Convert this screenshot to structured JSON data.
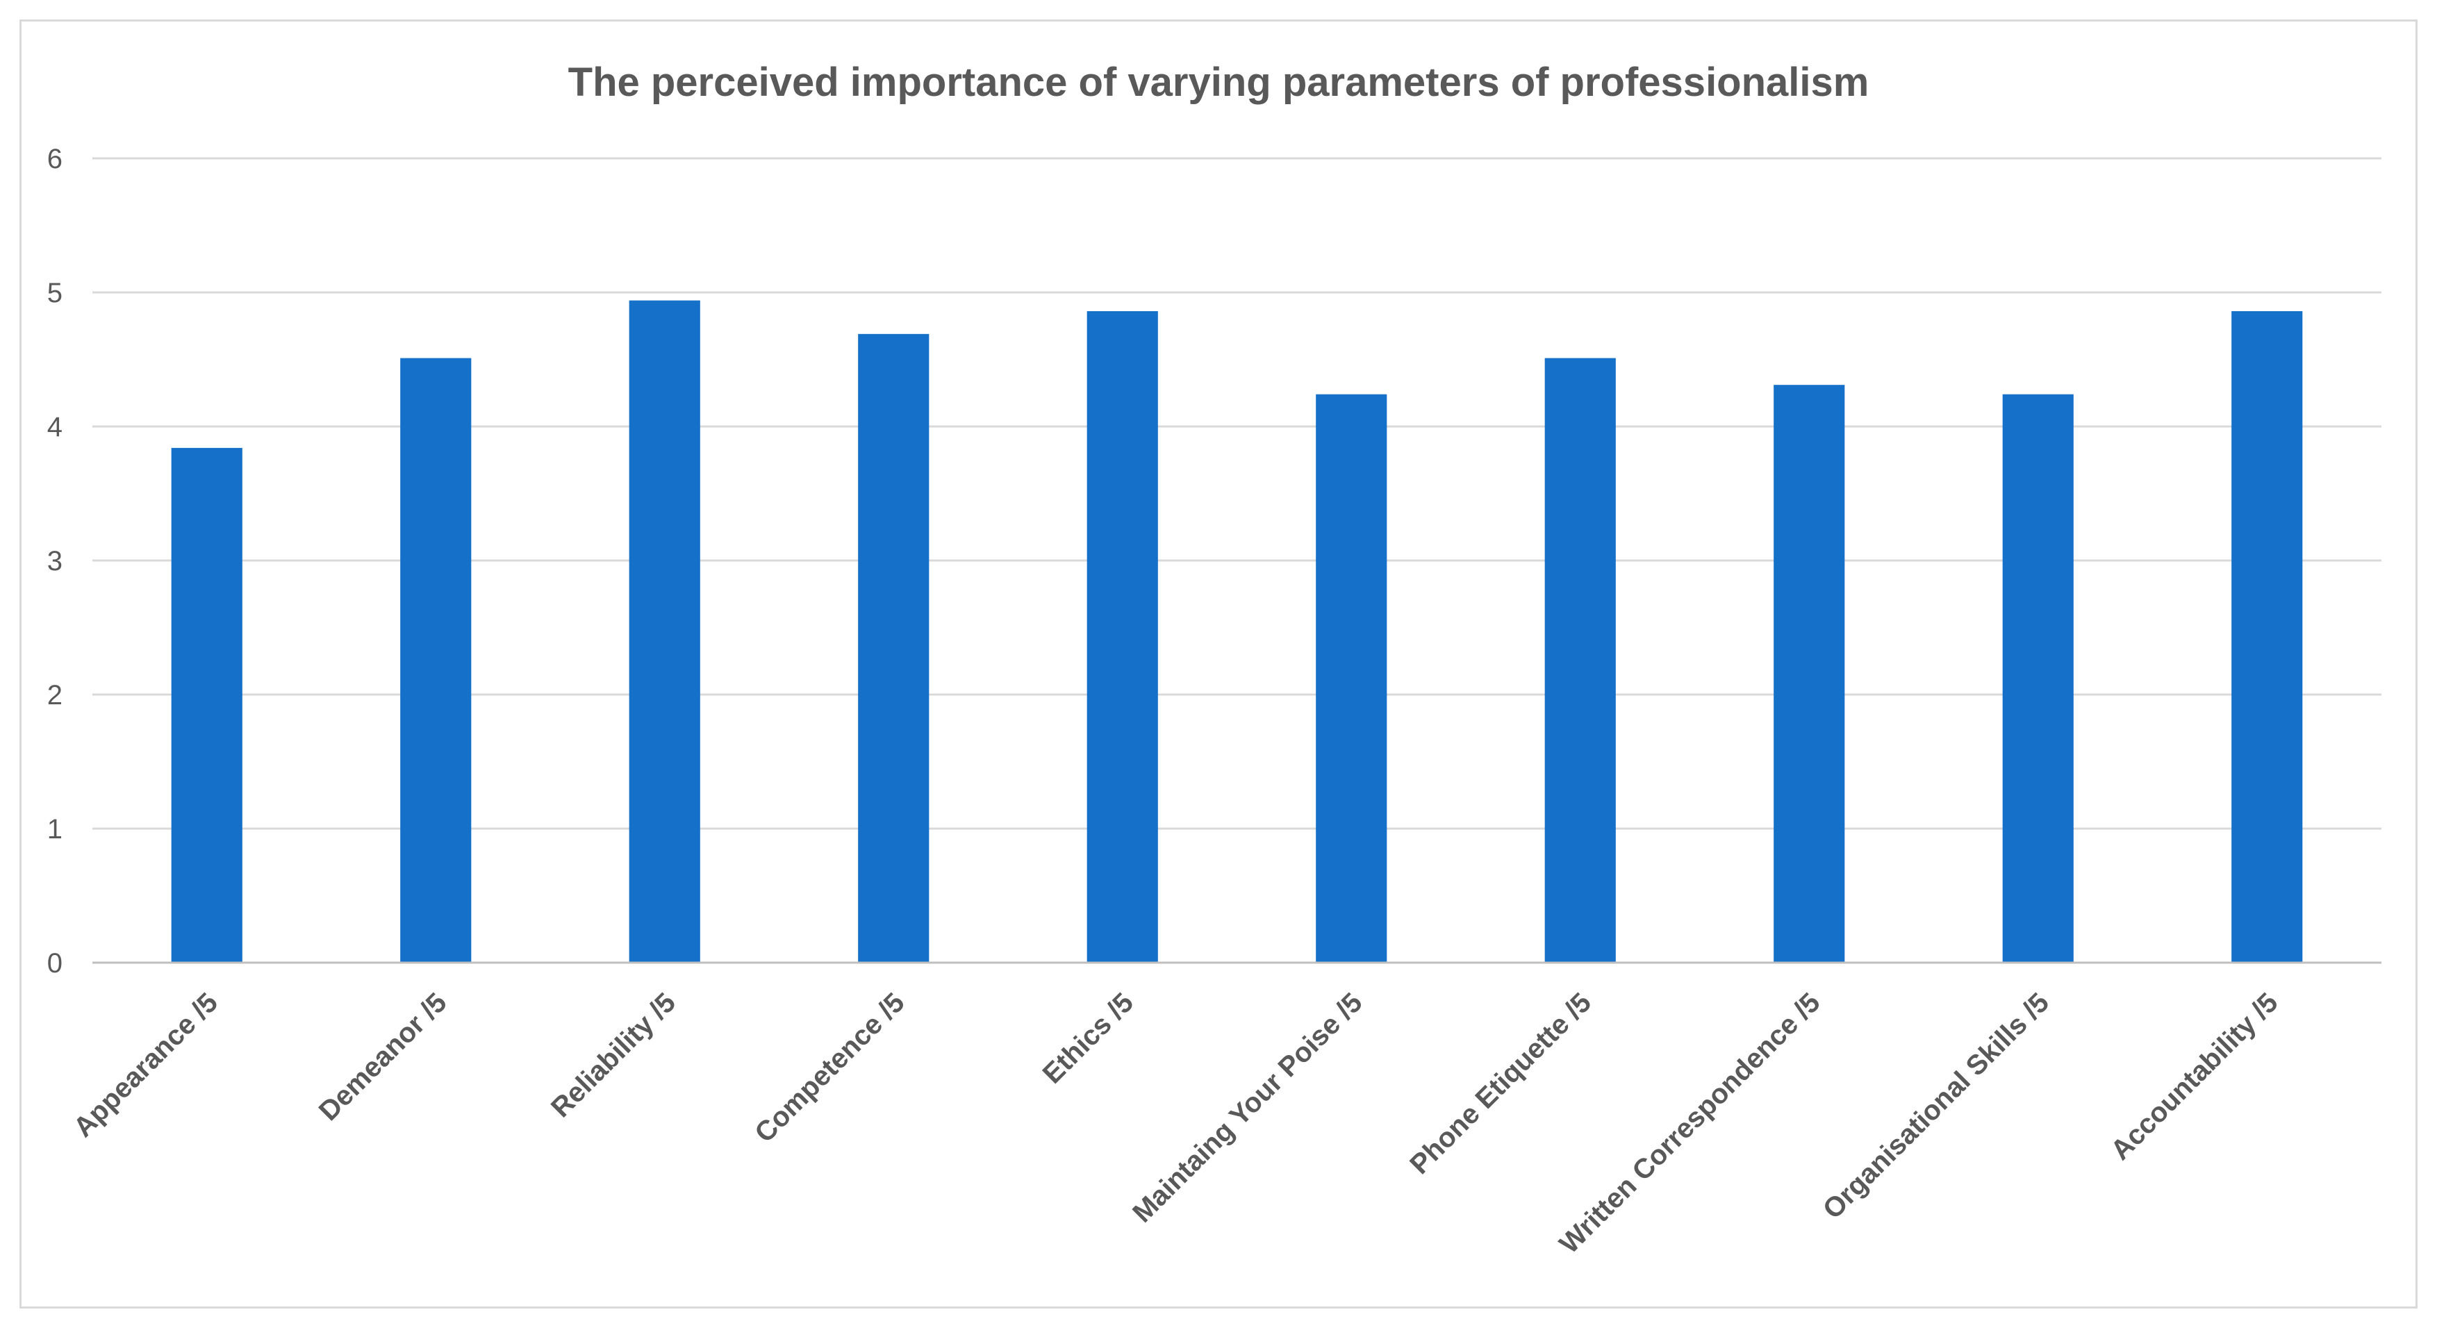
{
  "chart_data": {
    "type": "bar",
    "title": "The perceived importance of varying parameters of professionalism",
    "xlabel": "",
    "ylabel": "",
    "categories": [
      "Appearance /5",
      "Demeanor /5",
      "Reliability /5",
      "Competence /5",
      "Ethics /5",
      "Maintaing Your Poise /5",
      "Phone Etiquette /5",
      "Written Correspondence /5",
      "Organisational Skills /5",
      "Accountability /5"
    ],
    "values": [
      3.84,
      4.51,
      4.94,
      4.69,
      4.86,
      4.24,
      4.51,
      4.31,
      4.24,
      4.86
    ],
    "ylim": [
      0,
      6
    ],
    "yticks": [
      "0",
      "1",
      "2",
      "3",
      "4",
      "5",
      "6"
    ],
    "grid": true,
    "legend": "none",
    "bar_color": "#1470c8"
  }
}
